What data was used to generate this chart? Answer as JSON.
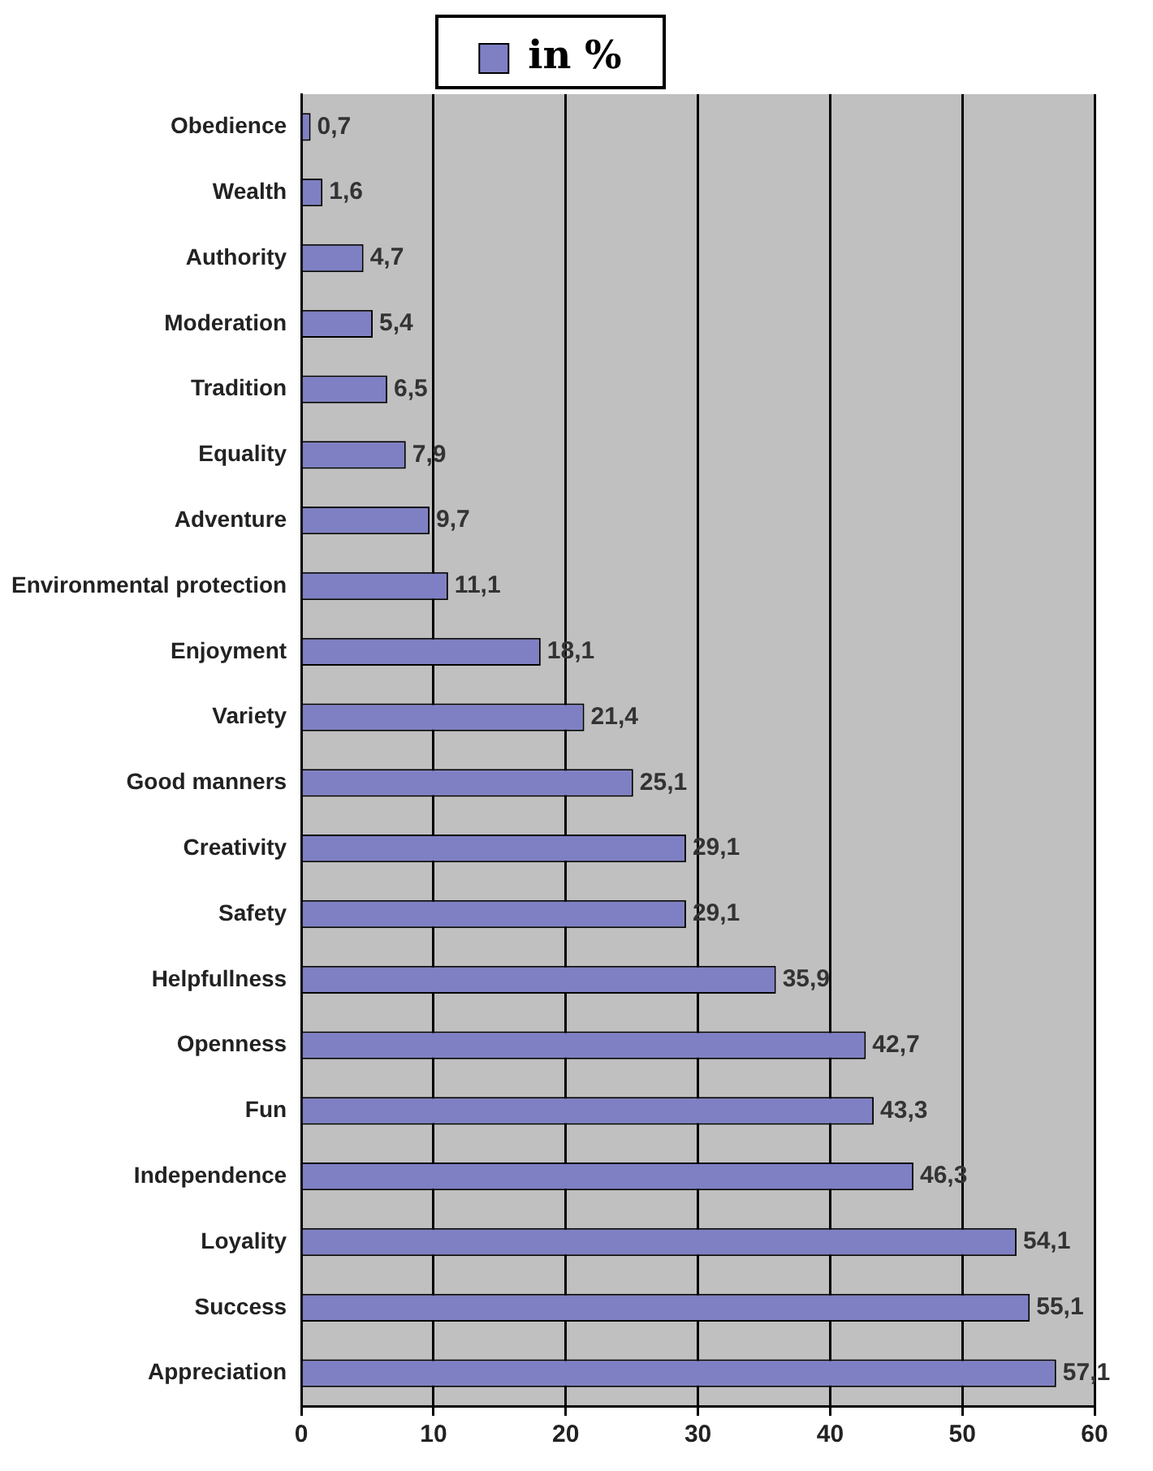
{
  "chart_data": {
    "type": "bar",
    "orientation": "horizontal",
    "categories": [
      "Obedience",
      "Wealth",
      "Authority",
      "Moderation",
      "Tradition",
      "Equality",
      "Adventure",
      "Environmental protection",
      "Enjoyment",
      "Variety",
      "Good manners",
      "Creativity",
      "Safety",
      "Helpfullness",
      "Openness",
      "Fun",
      "Independence",
      "Loyality",
      "Success",
      "Appreciation"
    ],
    "series": [
      {
        "name": "in %",
        "color": "#7f80c4",
        "values": [
          0.7,
          1.6,
          4.7,
          5.4,
          6.5,
          7.9,
          9.7,
          11.1,
          18.1,
          21.4,
          25.1,
          29.1,
          29.1,
          35.9,
          42.7,
          43.3,
          46.3,
          54.1,
          55.1,
          57.1
        ],
        "value_labels": [
          "0,7",
          "1,6",
          "4,7",
          "5,4",
          "6,5",
          "7,9",
          "9,7",
          "11,1",
          "18,1",
          "21,4",
          "25,1",
          "29,1",
          "29,1",
          "35,9",
          "42,7",
          "43,3",
          "46,3",
          "54,1",
          "55,1",
          "57,1"
        ]
      }
    ],
    "xlim": [
      0,
      60
    ],
    "xticks": [
      0,
      10,
      20,
      30,
      40,
      50,
      60
    ],
    "grid": "x",
    "legend": "top"
  }
}
